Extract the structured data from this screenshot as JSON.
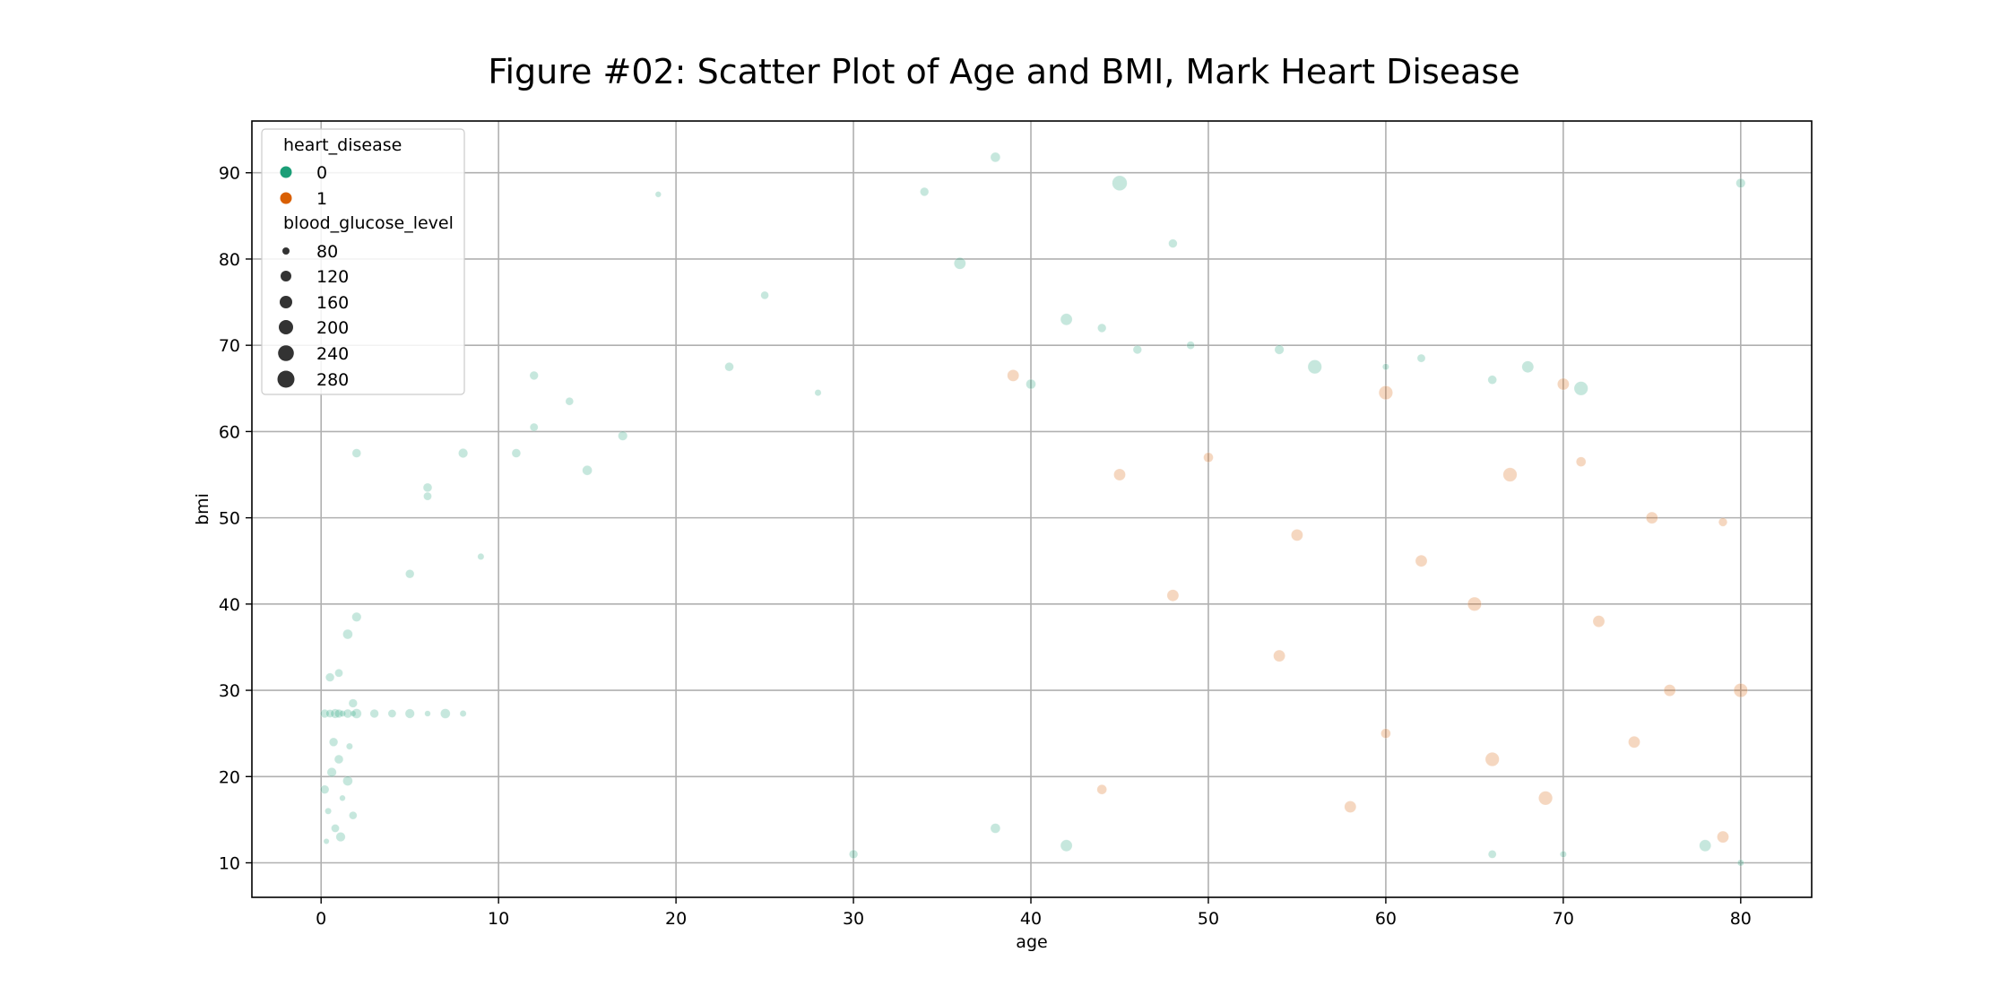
{
  "chart_data": {
    "type": "scatter",
    "title": "Figure #02: Scatter Plot of Age and BMI, Mark Heart Disease",
    "xlabel": "age",
    "ylabel": "bmi",
    "xlim": [
      -3.9,
      84.0
    ],
    "ylim": [
      6.0,
      96.0
    ],
    "xticks": [
      0,
      10,
      20,
      30,
      40,
      50,
      60,
      70,
      80
    ],
    "yticks": [
      10,
      20,
      30,
      40,
      50,
      60,
      70,
      80,
      90
    ],
    "grid": true,
    "legend_position": "upper-left",
    "hue": {
      "title": "heart_disease",
      "entries": [
        {
          "label": "0",
          "color": "#1b9e77"
        },
        {
          "label": "1",
          "color": "#d95f02"
        }
      ]
    },
    "size": {
      "title": "blood_glucose_level",
      "entries": [
        "80",
        "120",
        "160",
        "200",
        "240",
        "280"
      ]
    },
    "point_alpha": 0.25,
    "series": [
      {
        "heart_disease": "0",
        "points": [
          [
            0.2,
            27.3,
            140
          ],
          [
            0.5,
            27.3,
            130
          ],
          [
            0.8,
            27.3,
            155
          ],
          [
            1.0,
            27.3,
            140
          ],
          [
            1.2,
            27.3,
            100
          ],
          [
            1.5,
            27.3,
            145
          ],
          [
            1.8,
            27.3,
            90
          ],
          [
            2.0,
            27.3,
            160
          ],
          [
            0.2,
            18.5,
            140
          ],
          [
            0.4,
            16.0,
            100
          ],
          [
            0.6,
            20.5,
            155
          ],
          [
            0.8,
            14.0,
            130
          ],
          [
            1.0,
            22.0,
            145
          ],
          [
            1.2,
            17.5,
            90
          ],
          [
            1.5,
            19.5,
            160
          ],
          [
            1.8,
            15.5,
            126
          ],
          [
            0.3,
            12.5,
            85
          ],
          [
            0.7,
            24.0,
            140
          ],
          [
            1.1,
            13.0,
            155
          ],
          [
            1.6,
            23.5,
            100
          ],
          [
            0.5,
            31.5,
            140
          ],
          [
            1.0,
            32.0,
            130
          ],
          [
            1.5,
            36.5,
            160
          ],
          [
            2.0,
            38.5,
            155
          ],
          [
            1.8,
            28.5,
            140
          ],
          [
            2.0,
            57.5,
            145
          ],
          [
            3.0,
            27.3,
            140
          ],
          [
            4.0,
            27.3,
            130
          ],
          [
            5.0,
            27.3,
            155
          ],
          [
            6.0,
            27.3,
            90
          ],
          [
            7.0,
            27.3,
            160
          ],
          [
            8.0,
            27.3,
            100
          ],
          [
            5,
            43.5,
            140
          ],
          [
            6,
            53.5,
            145
          ],
          [
            6,
            52.5,
            130
          ],
          [
            8,
            57.5,
            155
          ],
          [
            9,
            45.5,
            100
          ],
          [
            11,
            57.5,
            145
          ],
          [
            12,
            66.5,
            140
          ],
          [
            12,
            60.5,
            130
          ],
          [
            14,
            63.5,
            126
          ],
          [
            15,
            55.5,
            160
          ],
          [
            17,
            59.5,
            155
          ],
          [
            19,
            87.5,
            90
          ],
          [
            23,
            67.5,
            145
          ],
          [
            25,
            75.8,
            126
          ],
          [
            28,
            64.5,
            100
          ],
          [
            34,
            87.8,
            140
          ],
          [
            36,
            79.5,
            200
          ],
          [
            38,
            91.8,
            160
          ],
          [
            42,
            73.0,
            200
          ],
          [
            44,
            72.0,
            140
          ],
          [
            45,
            88.8,
            260
          ],
          [
            48,
            81.8,
            140
          ],
          [
            49,
            70.0,
            126
          ],
          [
            54,
            69.5,
            155
          ],
          [
            56,
            67.5,
            240
          ],
          [
            60,
            67.5,
            100
          ],
          [
            62,
            68.5,
            130
          ],
          [
            66,
            66.0,
            145
          ],
          [
            68,
            67.5,
            200
          ],
          [
            71,
            65.0,
            240
          ],
          [
            80,
            88.8,
            155
          ],
          [
            78,
            12.0,
            200
          ],
          [
            42,
            12.0,
            200
          ],
          [
            38,
            14.0,
            160
          ],
          [
            30,
            11.0,
            140
          ],
          [
            66,
            11.0,
            130
          ],
          [
            70,
            11.0,
            100
          ],
          [
            80,
            10.0,
            100
          ],
          [
            40,
            65.5,
            160
          ],
          [
            46,
            69.5,
            140
          ]
        ]
      },
      {
        "heart_disease": "1",
        "points": [
          [
            39,
            66.5,
            200
          ],
          [
            60,
            64.5,
            240
          ],
          [
            70,
            65.5,
            200
          ],
          [
            67,
            55.0,
            240
          ],
          [
            71,
            56.5,
            160
          ],
          [
            75,
            50.0,
            200
          ],
          [
            79,
            49.5,
            140
          ],
          [
            45,
            55.0,
            200
          ],
          [
            50,
            57.0,
            160
          ],
          [
            55,
            48.0,
            200
          ],
          [
            58,
            16.5,
            200
          ],
          [
            69,
            17.5,
            240
          ],
          [
            79,
            13.0,
            200
          ],
          [
            44,
            18.5,
            160
          ],
          [
            62,
            45.0,
            200
          ],
          [
            65,
            40.0,
            240
          ],
          [
            72,
            38.0,
            200
          ],
          [
            76,
            30.0,
            200
          ],
          [
            80,
            30.0,
            240
          ],
          [
            54,
            34.0,
            200
          ],
          [
            60,
            25.0,
            160
          ],
          [
            66,
            22.0,
            240
          ],
          [
            48,
            41.0,
            200
          ],
          [
            74,
            24.0,
            200
          ]
        ]
      }
    ]
  }
}
